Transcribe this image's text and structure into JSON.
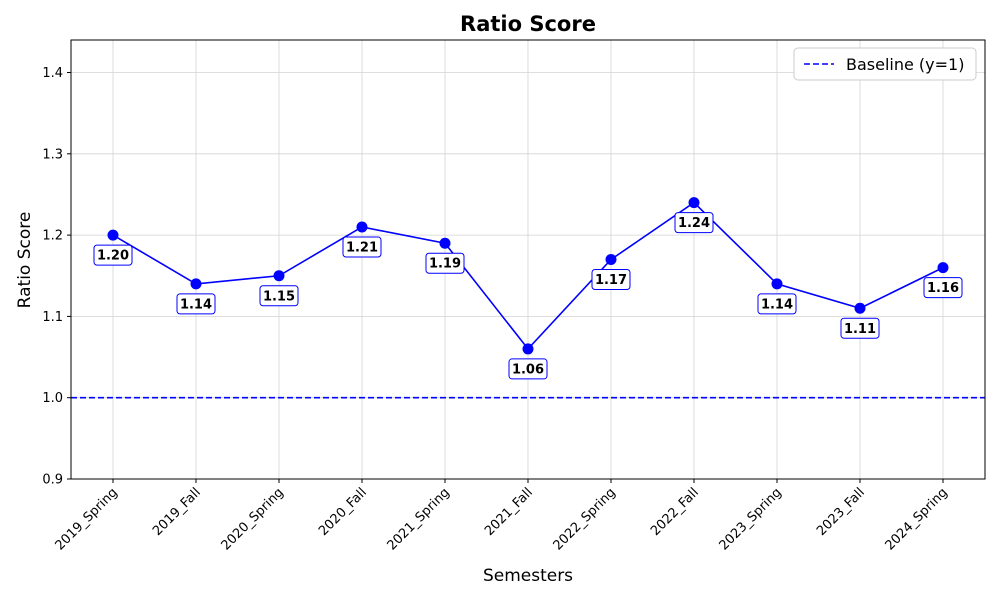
{
  "chart_data": {
    "type": "line",
    "title": "Ratio Score",
    "xlabel": "Semesters",
    "ylabel": "Ratio Score",
    "categories": [
      "2019_Spring",
      "2019_Fall",
      "2020_Spring",
      "2020_Fall",
      "2021_Spring",
      "2021_Fall",
      "2022_Spring",
      "2022_Fall",
      "2023_Spring",
      "2023_Fall",
      "2024_Spring"
    ],
    "series": [
      {
        "values": [
          1.2,
          1.14,
          1.15,
          1.21,
          1.19,
          1.06,
          1.17,
          1.24,
          1.14,
          1.11,
          1.16
        ],
        "data_labels": [
          "1.20",
          "1.14",
          "1.15",
          "1.21",
          "1.19",
          "1.06",
          "1.17",
          "1.24",
          "1.14",
          "1.11",
          "1.16"
        ],
        "color": "#0000ff",
        "marker": "circle"
      }
    ],
    "reference_lines": [
      {
        "name": "Baseline (y=1)",
        "y": 1.0,
        "style": "dashed",
        "color": "#0000ff"
      }
    ],
    "yticks": [
      "0.9",
      "1.0",
      "1.1",
      "1.2",
      "1.3",
      "1.4"
    ],
    "ylim": [
      0.9,
      1.44
    ],
    "grid": true,
    "legend_position": "top-right",
    "label_box_color": "#0000ff"
  }
}
